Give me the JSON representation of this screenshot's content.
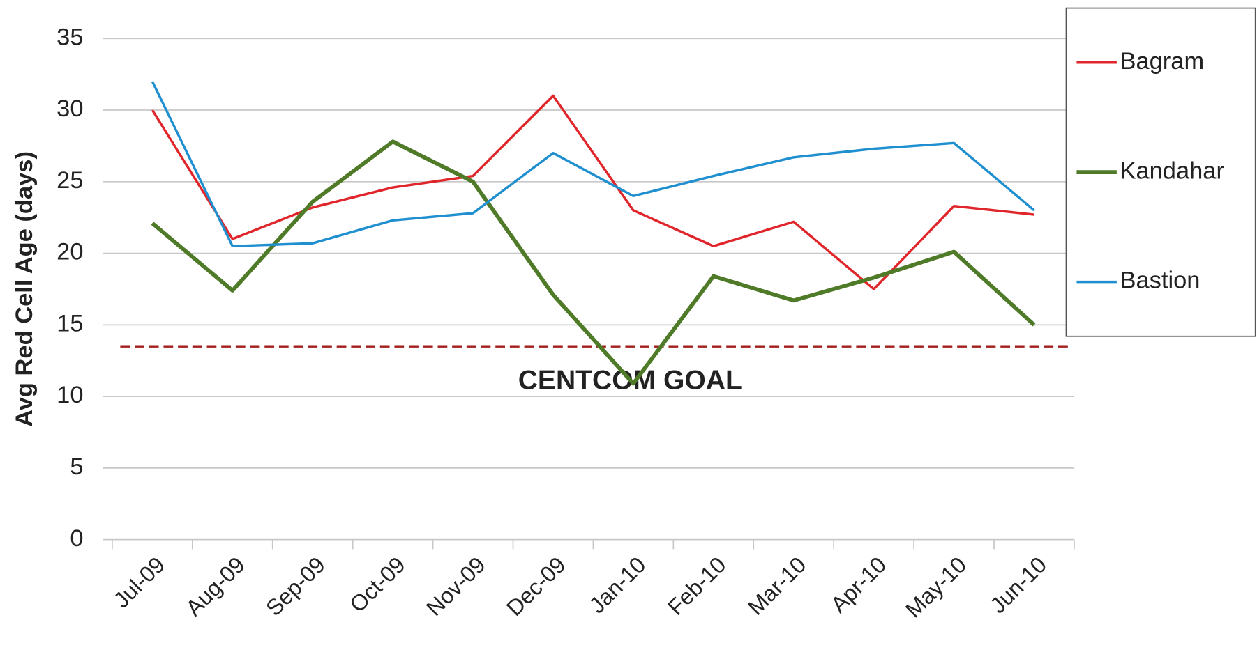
{
  "chart_data": {
    "type": "line",
    "y_label": "Avg Red Cell Age  (days)",
    "categories": [
      "Jul-09",
      "Aug-09",
      "Sep-09",
      "Oct-09",
      "Nov-09",
      "Dec-09",
      "Jan-10",
      "Feb-10",
      "Mar-10",
      "Apr-10",
      "May-10",
      "Jun-10"
    ],
    "series": [
      {
        "name": "Bagram",
        "color": "#e0262b",
        "values": [
          30,
          21,
          23.2,
          24.6,
          25.4,
          31,
          23,
          20.5,
          22.2,
          17.5,
          23.3,
          22.7
        ]
      },
      {
        "name": "Kandahar",
        "color": "#4f7a28",
        "values": [
          22.1,
          17.4,
          23.6,
          27.8,
          25,
          17.1,
          10.9,
          18.4,
          16.7,
          18.3,
          20.1,
          15
        ]
      },
      {
        "name": "Bastion",
        "color": "#1f8fd0",
        "values": [
          32,
          20.5,
          20.7,
          22.3,
          22.8,
          27,
          24,
          25.4,
          26.7,
          27.3,
          27.7,
          23
        ]
      }
    ],
    "goal": {
      "value": 13.5,
      "label": "CENTCOM GOAL",
      "color": "#a31d1d"
    },
    "ylim": [
      0,
      35
    ],
    "yticks": [
      0,
      5,
      10,
      15,
      20,
      25,
      30,
      35
    ],
    "grid": true,
    "legend": "right"
  }
}
